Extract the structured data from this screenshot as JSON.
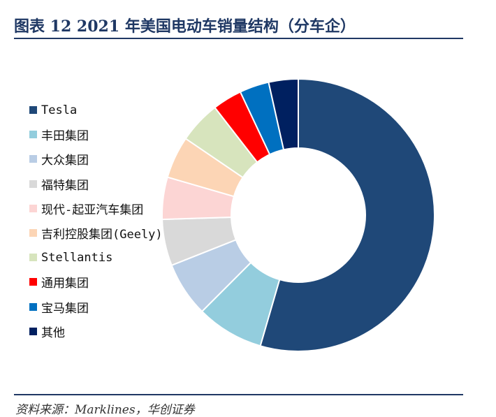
{
  "header": {
    "title": "图表 12   2021 年美国电动车销量结构（分车企）"
  },
  "footer": {
    "source": "资料来源：Marklines，华创证券"
  },
  "chart_data": {
    "type": "pie",
    "variant": "donut",
    "title": "",
    "legend_position": "left",
    "categories": [
      "Tesla",
      "丰田集团",
      "大众集团",
      "福特集团",
      "现代-起亚汽车集团",
      "吉利控股集团(Geely)",
      "Stellantis",
      "通用集团",
      "宝马集团",
      "其他"
    ],
    "values": [
      54.5,
      8.0,
      6.5,
      5.5,
      5.0,
      5.0,
      5.0,
      3.5,
      3.5,
      3.5
    ],
    "unit": "%",
    "colors": [
      "#1f4878",
      "#93cddd",
      "#b9cde5",
      "#d9d9d9",
      "#fcd5d4",
      "#fcd5b5",
      "#d7e4bd",
      "#ff0000",
      "#0070c0",
      "#002060"
    ]
  }
}
